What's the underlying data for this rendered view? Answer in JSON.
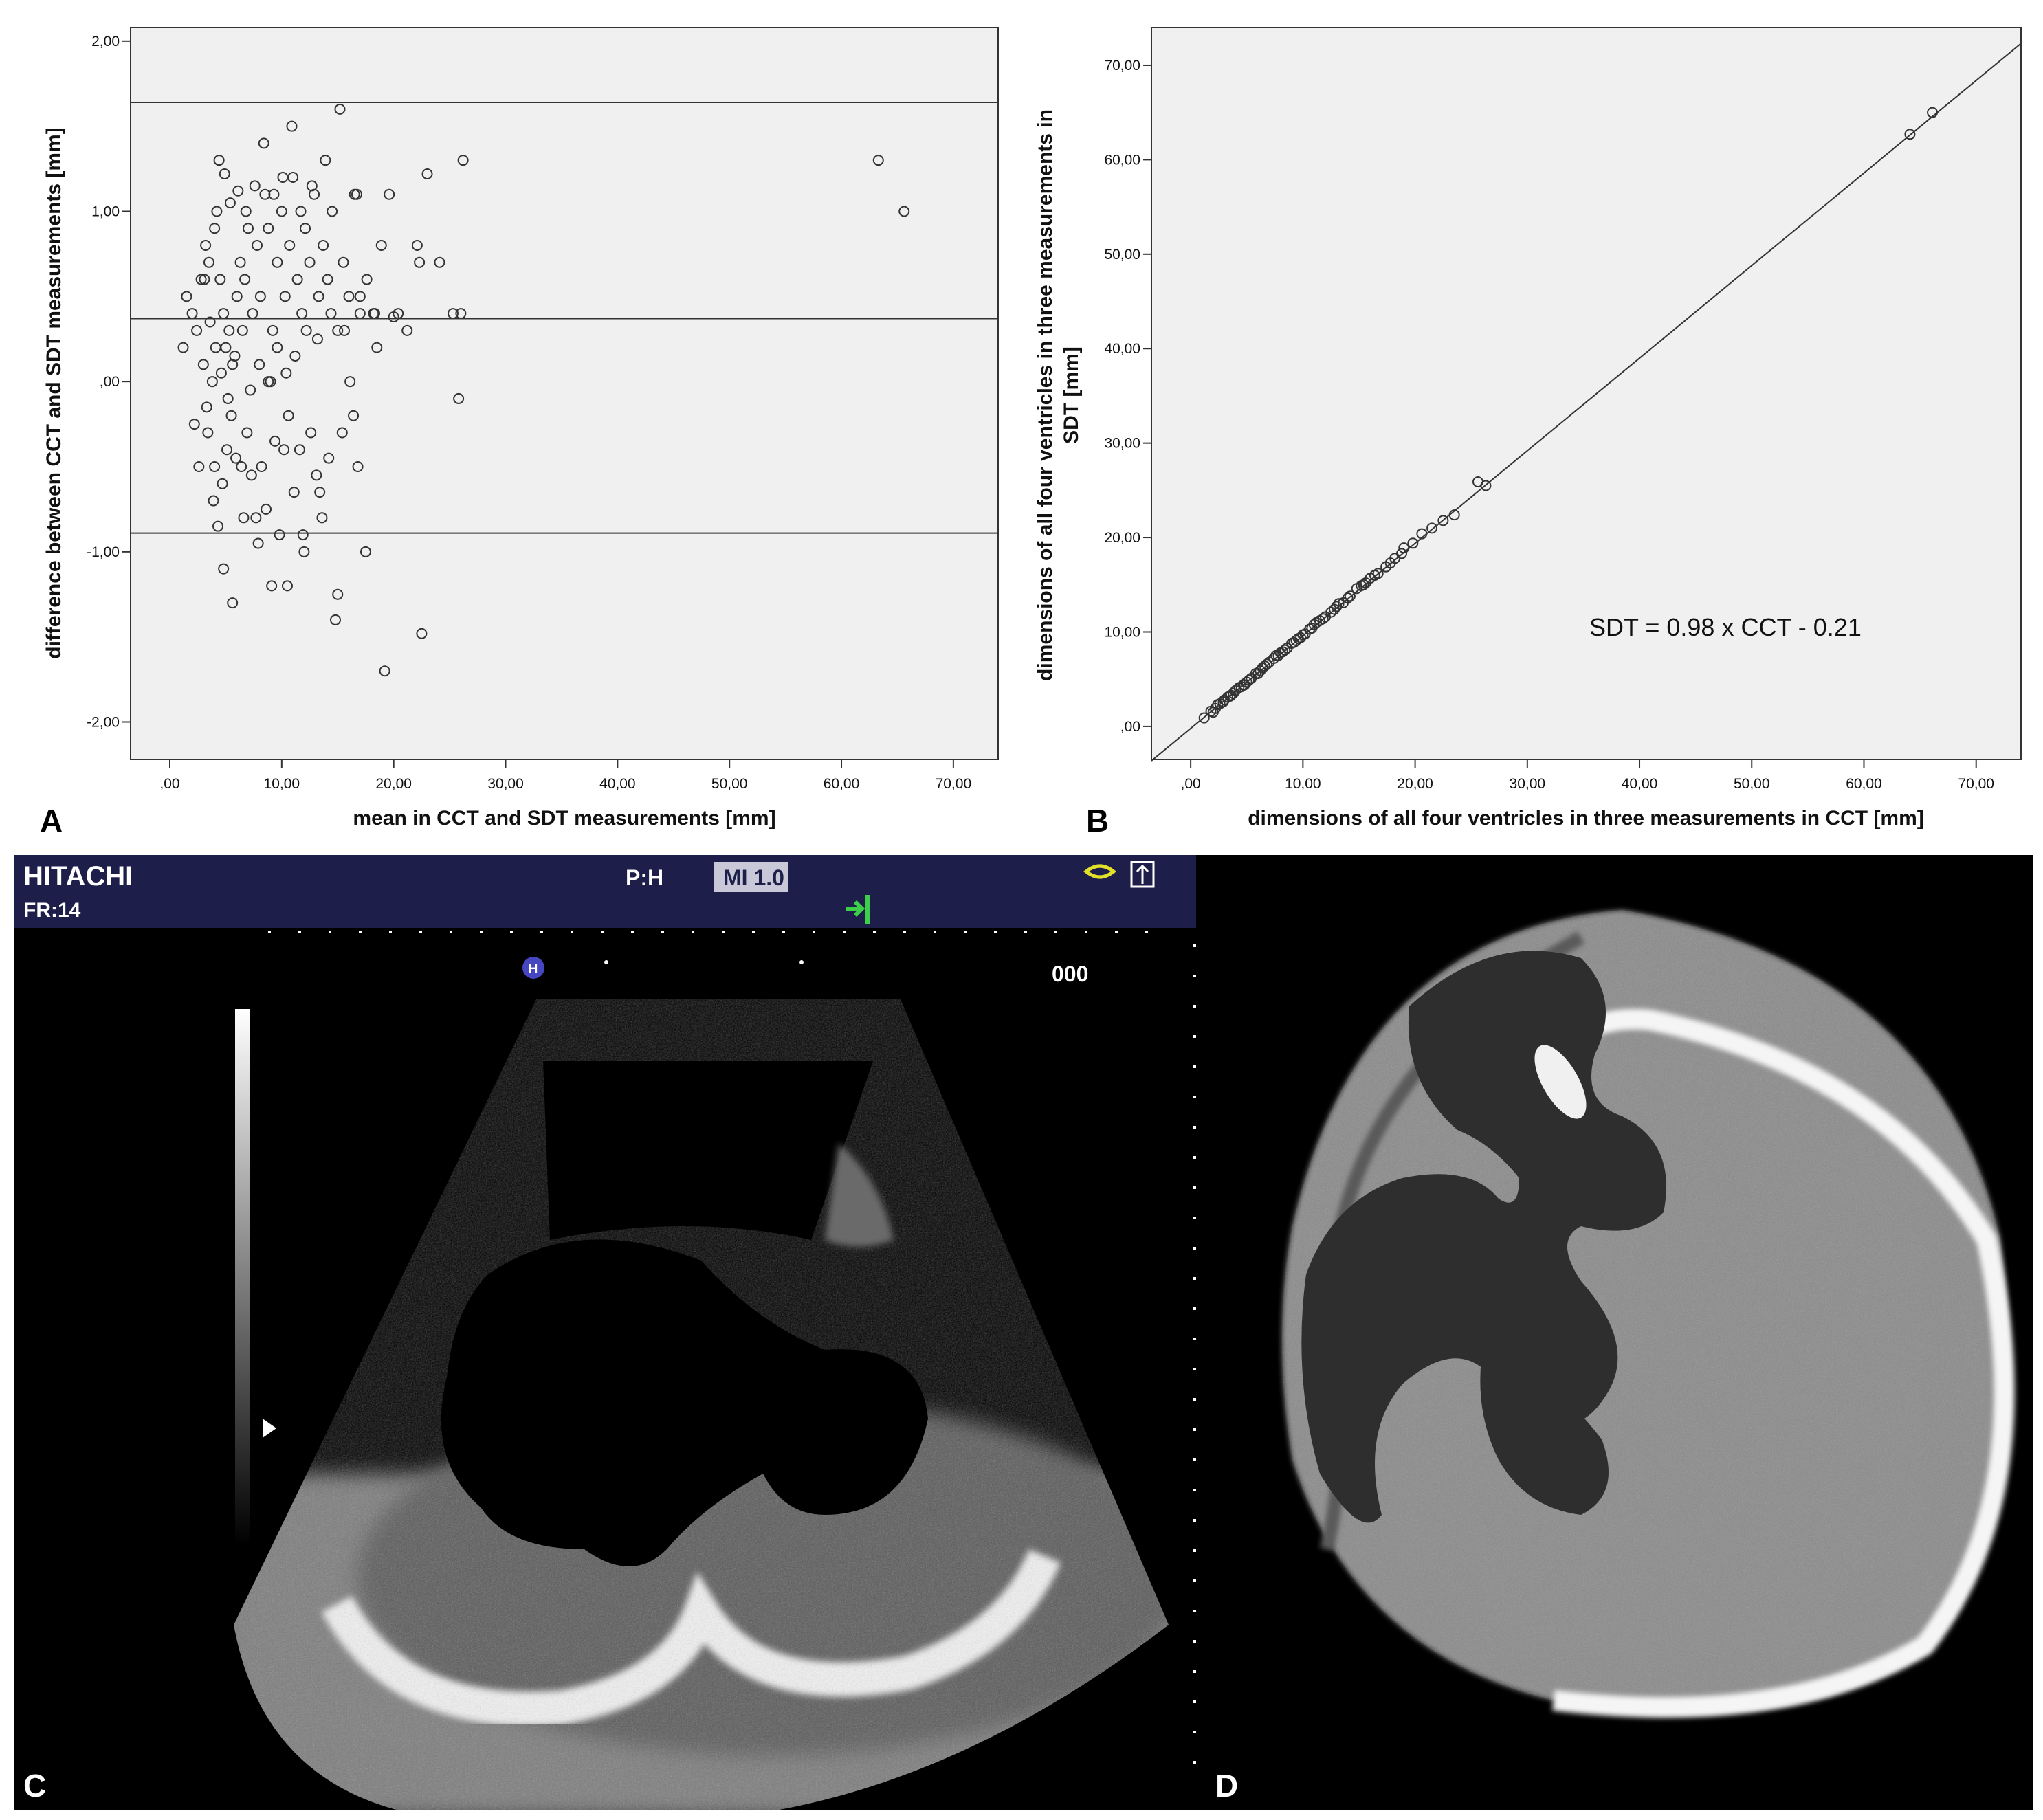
{
  "chart_data": [
    {
      "panel": "A",
      "type": "scatter",
      "xlabel": "mean in CCT and SDT measurements [mm]",
      "ylabel": "difference between CCT and SDT measurements [mm]",
      "xlim": [
        -3.5,
        74
      ],
      "ylim": [
        -2.22,
        2.08
      ],
      "xticks": [
        ",00",
        "10,00",
        "20,00",
        "30,00",
        "40,00",
        "50,00",
        "60,00",
        "70,00"
      ],
      "yticks": [
        "2,00",
        "1,00",
        ",00",
        "-1,00",
        "-2,00"
      ],
      "reference_lines": [
        1.64,
        0.37,
        -0.89
      ],
      "grid": false,
      "x": [
        1.2,
        1.5,
        2.0,
        2.4,
        2.8,
        3.0,
        3.2,
        3.5,
        3.8,
        4.0,
        4.2,
        4.5,
        4.8,
        5.0,
        5.3,
        5.6,
        6.0,
        6.3,
        6.7,
        7.0,
        7.4,
        7.8,
        8.1,
        8.5,
        8.8,
        9.2,
        9.6,
        10.0,
        10.3,
        10.7,
        11.0,
        11.4,
        11.8,
        12.1,
        12.5,
        12.9,
        13.3,
        13.7,
        14.1,
        14.5,
        15.0,
        15.5,
        16.0,
        16.5,
        17.0,
        17.6,
        18.2,
        18.9,
        19.6,
        20.4,
        21.2,
        22.1,
        23.0,
        24.1,
        25.3,
        26.2,
        2.2,
        2.6,
        3.4,
        3.9,
        4.3,
        4.7,
        5.1,
        5.5,
        5.9,
        6.4,
        6.9,
        7.3,
        7.7,
        8.2,
        8.6,
        9.0,
        9.4,
        9.8,
        10.2,
        10.6,
        11.1,
        11.6,
        12.0,
        12.6,
        13.1,
        13.6,
        14.2,
        14.8,
        15.4,
        16.1,
        16.8,
        17.5,
        3.1,
        3.6,
        4.1,
        4.6,
        5.2,
        5.8,
        6.5,
        7.2,
        8.0,
        8.8,
        9.6,
        10.4,
        11.2,
        12.2,
        13.2,
        14.4,
        15.6,
        17.0,
        18.5,
        20.0,
        4.4,
        4.9,
        5.4,
        6.1,
        6.8,
        7.6,
        8.4,
        9.3,
        10.1,
        10.9,
        11.7,
        12.7,
        13.9,
        15.2,
        16.7,
        18.3,
        22.3,
        25.8,
        63.3,
        65.6,
        3.3,
        4.0,
        4.8,
        5.6,
        6.6,
        7.9,
        9.1,
        10.5,
        11.9,
        13.4,
        15.0,
        16.4,
        19.2,
        22.5,
        26.0
      ],
      "y": [
        0.2,
        0.5,
        0.4,
        0.3,
        0.6,
        0.1,
        0.8,
        0.7,
        0.0,
        0.9,
        1.0,
        0.6,
        0.4,
        0.2,
        0.3,
        0.1,
        0.5,
        0.7,
        0.6,
        0.9,
        0.4,
        0.8,
        0.5,
        1.1,
        0.9,
        0.3,
        0.7,
        1.0,
        0.5,
        0.8,
        1.2,
        0.6,
        0.4,
        0.9,
        0.7,
        1.1,
        0.5,
        0.8,
        0.6,
        1.0,
        0.3,
        0.7,
        0.5,
        1.1,
        0.4,
        0.6,
        0.4,
        0.8,
        1.1,
        0.4,
        0.3,
        0.8,
        1.22,
        0.7,
        0.4,
        1.3,
        -0.25,
        -0.5,
        -0.3,
        -0.7,
        -0.85,
        -0.6,
        -0.4,
        -0.2,
        -0.45,
        -0.5,
        -0.3,
        -0.55,
        -0.8,
        -0.5,
        -0.75,
        -0.0,
        -0.35,
        -0.9,
        -0.4,
        -0.2,
        -0.65,
        -0.4,
        -1.0,
        -0.3,
        -0.55,
        -0.8,
        -0.45,
        -1.4,
        -0.3,
        -0.0,
        -0.5,
        -1.0,
        0.6,
        0.35,
        0.2,
        0.05,
        -0.1,
        0.15,
        0.3,
        -0.05,
        0.1,
        -0.0,
        0.2,
        0.05,
        0.15,
        0.3,
        0.25,
        0.4,
        0.3,
        0.5,
        0.2,
        0.38,
        1.3,
        1.22,
        1.05,
        1.12,
        1.0,
        1.15,
        1.4,
        1.1,
        1.2,
        1.5,
        1.0,
        1.15,
        1.3,
        1.6,
        1.1,
        0.4,
        0.7,
        -0.1,
        1.3,
        1.0,
        -0.15,
        -0.5,
        -1.1,
        -1.3,
        -0.8,
        -0.95,
        -1.2,
        -1.2,
        -0.9,
        -0.65,
        -1.25,
        -0.2,
        -1.7,
        -1.48,
        0.4
      ],
      "marker": "open-circle",
      "point_color": "#333333",
      "background": "#f0f0f0"
    },
    {
      "panel": "B",
      "type": "scatter",
      "xlabel": "dimensions of all four ventricles in three measurements in CCT [mm]",
      "ylabel_lines": [
        "dimensions of all four ventricles in three measurements in",
        "SDT [mm]"
      ],
      "xlim": [
        -3.5,
        74
      ],
      "ylim": [
        -3.5,
        74
      ],
      "xticks": [
        ",00",
        "10,00",
        "20,00",
        "30,00",
        "40,00",
        "50,00",
        "60,00",
        "70,00"
      ],
      "yticks": [
        "70,00",
        "60,00",
        "50,00",
        "40,00",
        "30,00",
        "20,00",
        "10,00",
        ",00"
      ],
      "fit_line": {
        "slope": 0.98,
        "intercept": -0.21
      },
      "annotation": "SDT = 0.98 x CCT - 0.21",
      "x": [
        1.2,
        1.8,
        2.2,
        2.6,
        3.0,
        3.3,
        3.6,
        4.0,
        4.3,
        4.7,
        5.0,
        5.4,
        5.8,
        6.2,
        6.6,
        7.0,
        7.4,
        7.8,
        8.2,
        8.6,
        9.0,
        9.4,
        9.8,
        10.2,
        10.6,
        11.0,
        11.5,
        12.0,
        12.5,
        13.0,
        13.6,
        14.2,
        14.8,
        15.4,
        16.0,
        16.7,
        17.4,
        18.2,
        19.0,
        19.8,
        20.6,
        21.5,
        22.5,
        23.5,
        25.6,
        26.3,
        64.1,
        66.1,
        2.0,
        2.9,
        3.8,
        4.5,
        5.2,
        6.0,
        6.8,
        7.6,
        8.4,
        9.2,
        10.0,
        10.8,
        11.8,
        12.8,
        14.0,
        15.2,
        16.4,
        17.8,
        2.4,
        3.5,
        4.8,
        6.4,
        8.0,
        9.6,
        11.2,
        13.2,
        15.6,
        18.8
      ],
      "y": [
        0.9,
        1.6,
        1.9,
        2.4,
        2.8,
        3.1,
        3.3,
        3.8,
        4.1,
        4.4,
        4.7,
        5.1,
        5.6,
        5.9,
        6.4,
        6.8,
        7.2,
        7.5,
        7.9,
        8.3,
        8.8,
        9.1,
        9.4,
        9.8,
        10.3,
        10.8,
        11.2,
        11.6,
        12.1,
        12.7,
        13.1,
        13.8,
        14.6,
        15.0,
        15.7,
        16.2,
        16.9,
        17.8,
        18.9,
        19.4,
        20.4,
        21.0,
        21.8,
        22.4,
        25.9,
        25.5,
        62.7,
        65.0,
        1.5,
        2.6,
        3.5,
        4.2,
        4.9,
        5.6,
        6.6,
        7.5,
        8.1,
        8.9,
        9.7,
        10.4,
        11.4,
        12.4,
        13.6,
        14.9,
        16.0,
        17.3,
        2.3,
        3.2,
        4.4,
        6.2,
        7.8,
        9.3,
        11.0,
        13.0,
        15.2,
        18.3
      ],
      "marker": "open-circle",
      "point_color": "#333333",
      "background": "#f0f0f0"
    }
  ],
  "panels": {
    "a_letter": "A",
    "b_letter": "B",
    "c_letter": "C",
    "d_letter": "D"
  },
  "ultrasound": {
    "brand": "HITACHI",
    "frame_rate": "FR:14",
    "probe": "P:H",
    "mi": "MI 1.0",
    "depth_readout": "000",
    "marker_h": "H",
    "header_color": "#1d1f4a",
    "accent_green": "#3ecf4a",
    "accent_yellow": "#e3e02a"
  },
  "ct": {
    "background": "#000000"
  }
}
